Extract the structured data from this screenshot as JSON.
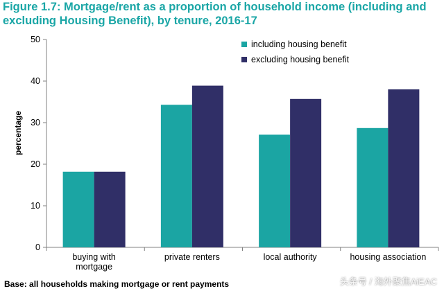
{
  "title": "Figure 1.7: Mortgage/rent as a proportion of household income (including and excluding Housing Benefit), by tenure, 2016-17",
  "footnote": "Base: all households making mortgage or rent payments",
  "watermark": "头条号 / 海外聚焦AiEAC",
  "colors": {
    "title": "#1aa6a6",
    "including": "#1ba5a3",
    "excluding": "#302f67",
    "axis": "#808080"
  },
  "chart_data": {
    "type": "bar",
    "title": "Figure 1.7: Mortgage/rent as a proportion of household income (including and excluding Housing Benefit), by tenure, 2016-17",
    "xlabel": "",
    "ylabel": "percentage",
    "ylim": [
      0,
      50
    ],
    "yticks": [
      0,
      10,
      20,
      30,
      40,
      50
    ],
    "categories": [
      [
        "buying with",
        "mortgage"
      ],
      [
        "private renters"
      ],
      [
        "local authority"
      ],
      [
        "housing association"
      ]
    ],
    "series": [
      {
        "name": "including housing benefit",
        "color": "#1ba5a3",
        "values": [
          18.2,
          34.3,
          27.1,
          28.7
        ]
      },
      {
        "name": "excluding housing benefit",
        "color": "#302f67",
        "values": [
          18.2,
          38.9,
          35.7,
          38.0
        ]
      }
    ],
    "legend_position": "top-right",
    "grid": false
  }
}
